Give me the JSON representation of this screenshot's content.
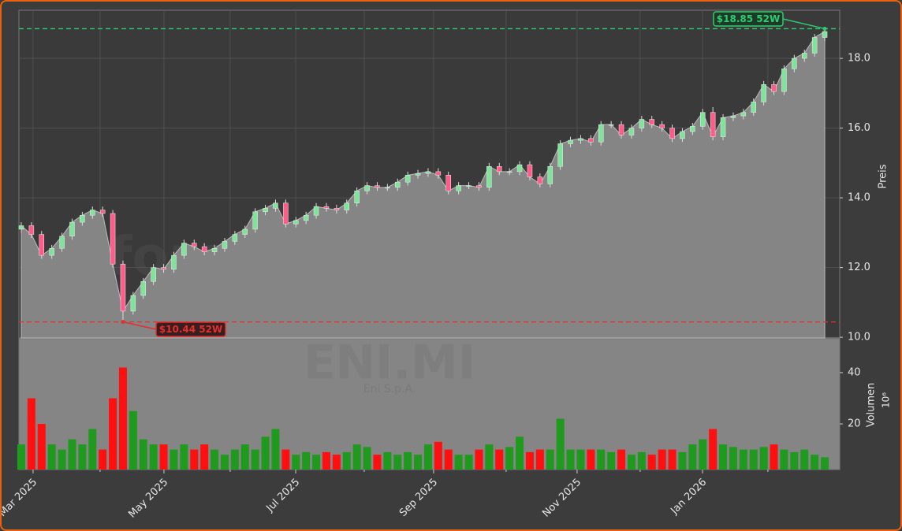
{
  "chart_data": {
    "type": "candlestick",
    "open": [
      13.1,
      13.2,
      12.95,
      12.35,
      12.55,
      12.9,
      13.3,
      13.5,
      13.65,
      13.55,
      12.1,
      10.75,
      11.2,
      11.6,
      12.0,
      11.95,
      12.35,
      12.7,
      12.6,
      12.45,
      12.55,
      12.75,
      12.95,
      13.1,
      13.6,
      13.7,
      13.85,
      13.25,
      13.35,
      13.5,
      13.75,
      13.7,
      13.65,
      13.85,
      14.2,
      14.35,
      14.3,
      14.3,
      14.45,
      14.65,
      14.7,
      14.75,
      14.65,
      14.2,
      14.35,
      14.35,
      14.3,
      14.9,
      14.75,
      14.75,
      14.95,
      14.6,
      14.4,
      14.9,
      15.55,
      15.65,
      15.7,
      15.6,
      16.1,
      16.1,
      15.8,
      16.0,
      16.25,
      16.1,
      16.0,
      15.7,
      15.9,
      16.05,
      16.45,
      15.75,
      16.3,
      16.35,
      16.45,
      16.75,
      17.25,
      17.05,
      17.7,
      18.0,
      18.15,
      18.6
    ],
    "high": [
      13.3,
      13.3,
      13.05,
      12.65,
      13.0,
      13.4,
      13.6,
      13.75,
      13.75,
      13.65,
      12.2,
      11.3,
      11.7,
      12.1,
      12.1,
      12.45,
      12.8,
      12.8,
      12.7,
      12.65,
      12.85,
      13.05,
      13.2,
      13.7,
      13.8,
      13.95,
      13.95,
      13.45,
      13.6,
      13.85,
      13.85,
      13.8,
      13.95,
      14.3,
      14.45,
      14.45,
      14.4,
      14.55,
      14.75,
      14.8,
      14.85,
      14.85,
      14.75,
      14.45,
      14.45,
      14.45,
      15.0,
      15.0,
      14.85,
      15.05,
      15.05,
      14.7,
      15.0,
      15.65,
      15.75,
      15.8,
      15.8,
      16.2,
      16.2,
      16.2,
      16.1,
      16.35,
      16.35,
      16.2,
      16.1,
      16.0,
      16.15,
      16.55,
      16.6,
      16.4,
      16.45,
      16.55,
      16.85,
      17.35,
      17.35,
      17.8,
      18.1,
      18.25,
      18.7,
      18.85
    ],
    "low": [
      13.0,
      12.85,
      12.25,
      12.25,
      12.45,
      12.8,
      13.2,
      13.4,
      13.45,
      12.0,
      10.44,
      10.65,
      11.1,
      11.5,
      11.85,
      11.85,
      12.25,
      12.5,
      12.35,
      12.35,
      12.45,
      12.65,
      12.85,
      13.0,
      13.5,
      13.6,
      13.15,
      13.15,
      13.25,
      13.4,
      13.6,
      13.55,
      13.55,
      13.75,
      14.1,
      14.2,
      14.2,
      14.2,
      14.35,
      14.55,
      14.6,
      14.55,
      14.1,
      14.1,
      14.25,
      14.2,
      14.2,
      14.65,
      14.65,
      14.65,
      14.5,
      14.3,
      14.3,
      14.8,
      15.45,
      15.55,
      15.5,
      15.5,
      16.0,
      15.7,
      15.7,
      15.9,
      16.0,
      15.9,
      15.6,
      15.6,
      15.8,
      15.95,
      15.65,
      15.65,
      16.2,
      16.25,
      16.35,
      16.65,
      16.95,
      16.95,
      17.6,
      17.9,
      18.05,
      18.5
    ],
    "close": [
      13.2,
      12.95,
      12.35,
      12.55,
      12.9,
      13.3,
      13.5,
      13.65,
      13.55,
      12.1,
      10.75,
      11.2,
      11.6,
      12.0,
      11.95,
      12.35,
      12.7,
      12.6,
      12.45,
      12.55,
      12.75,
      12.95,
      13.1,
      13.6,
      13.7,
      13.85,
      13.25,
      13.35,
      13.5,
      13.75,
      13.7,
      13.65,
      13.85,
      14.2,
      14.35,
      14.3,
      14.3,
      14.45,
      14.65,
      14.7,
      14.75,
      14.65,
      14.2,
      14.35,
      14.35,
      14.3,
      14.9,
      14.75,
      14.75,
      14.95,
      14.6,
      14.4,
      14.9,
      15.55,
      15.65,
      15.7,
      15.6,
      16.1,
      16.1,
      15.8,
      16.0,
      16.25,
      16.1,
      16.0,
      15.7,
      15.9,
      16.05,
      16.45,
      15.75,
      16.3,
      16.35,
      16.45,
      16.75,
      17.25,
      17.05,
      17.7,
      18.0,
      18.15,
      18.6,
      18.77
    ],
    "volume": [
      12,
      30,
      20,
      12,
      10,
      14,
      12,
      18,
      10,
      30,
      42,
      25,
      14,
      12,
      12,
      10,
      12,
      10,
      12,
      10,
      8,
      10,
      12,
      10,
      15,
      18,
      10,
      8,
      9,
      8,
      9,
      8,
      9,
      12,
      11,
      8,
      9,
      8,
      9,
      8,
      12,
      13,
      10,
      8,
      8,
      10,
      12,
      10,
      11,
      15,
      9,
      10,
      10,
      22,
      10,
      10,
      10,
      10,
      9,
      10,
      8,
      9,
      8,
      10,
      10,
      9,
      12,
      14,
      18,
      12,
      11,
      10,
      10,
      11,
      12,
      10,
      9,
      10,
      8,
      7
    ],
    "up_color": "#7fe39a",
    "down_color": "#ff5c8a",
    "volume_up_color": "#1f9a1f",
    "volume_down_color": "#ff1010",
    "area_color": "#858585",
    "xlim": [
      -0.23,
      80.47
    ],
    "xticks": [
      {
        "value": 1.16,
        "label": "Mar 2025"
      },
      {
        "value": 14.03,
        "label": "May 2025"
      },
      {
        "value": 26.98,
        "label": "Jul 2025"
      },
      {
        "value": 40.54,
        "label": "Sep 2025"
      },
      {
        "value": 54.65,
        "label": "Nov 2025"
      },
      {
        "value": 66.98,
        "label": "Jan 2026"
      }
    ],
    "xminor_ticks": [
      7.75,
      20.54,
      33.72,
      47.67,
      60.85,
      73.41
    ],
    "ylim": [
      9.98,
      19.38
    ],
    "yticks": [
      {
        "value": 10,
        "label": "10.0"
      },
      {
        "value": 12,
        "label": "12.0"
      },
      {
        "value": 14,
        "label": "14.0"
      },
      {
        "value": 16,
        "label": "16.0"
      },
      {
        "value": 18,
        "label": "18.0"
      }
    ],
    "ylabel": "Preis",
    "volume_ylim": [
      2.2,
      53.2
    ],
    "volume_yticks": [
      20,
      40
    ],
    "volume_ylabel": "Volumen",
    "volume_scale": "10⁶",
    "high_52w": {
      "value": 18.85,
      "label": "$18.85 52W",
      "color": "#2ecc71"
    },
    "low_52w": {
      "value": 10.44,
      "label": "$10.44 52W",
      "color": "#e03030"
    },
    "watermark": "forexsignale.trade",
    "symbol": "ENI.MI",
    "company": "Eni S.p.A.",
    "grid": true
  }
}
